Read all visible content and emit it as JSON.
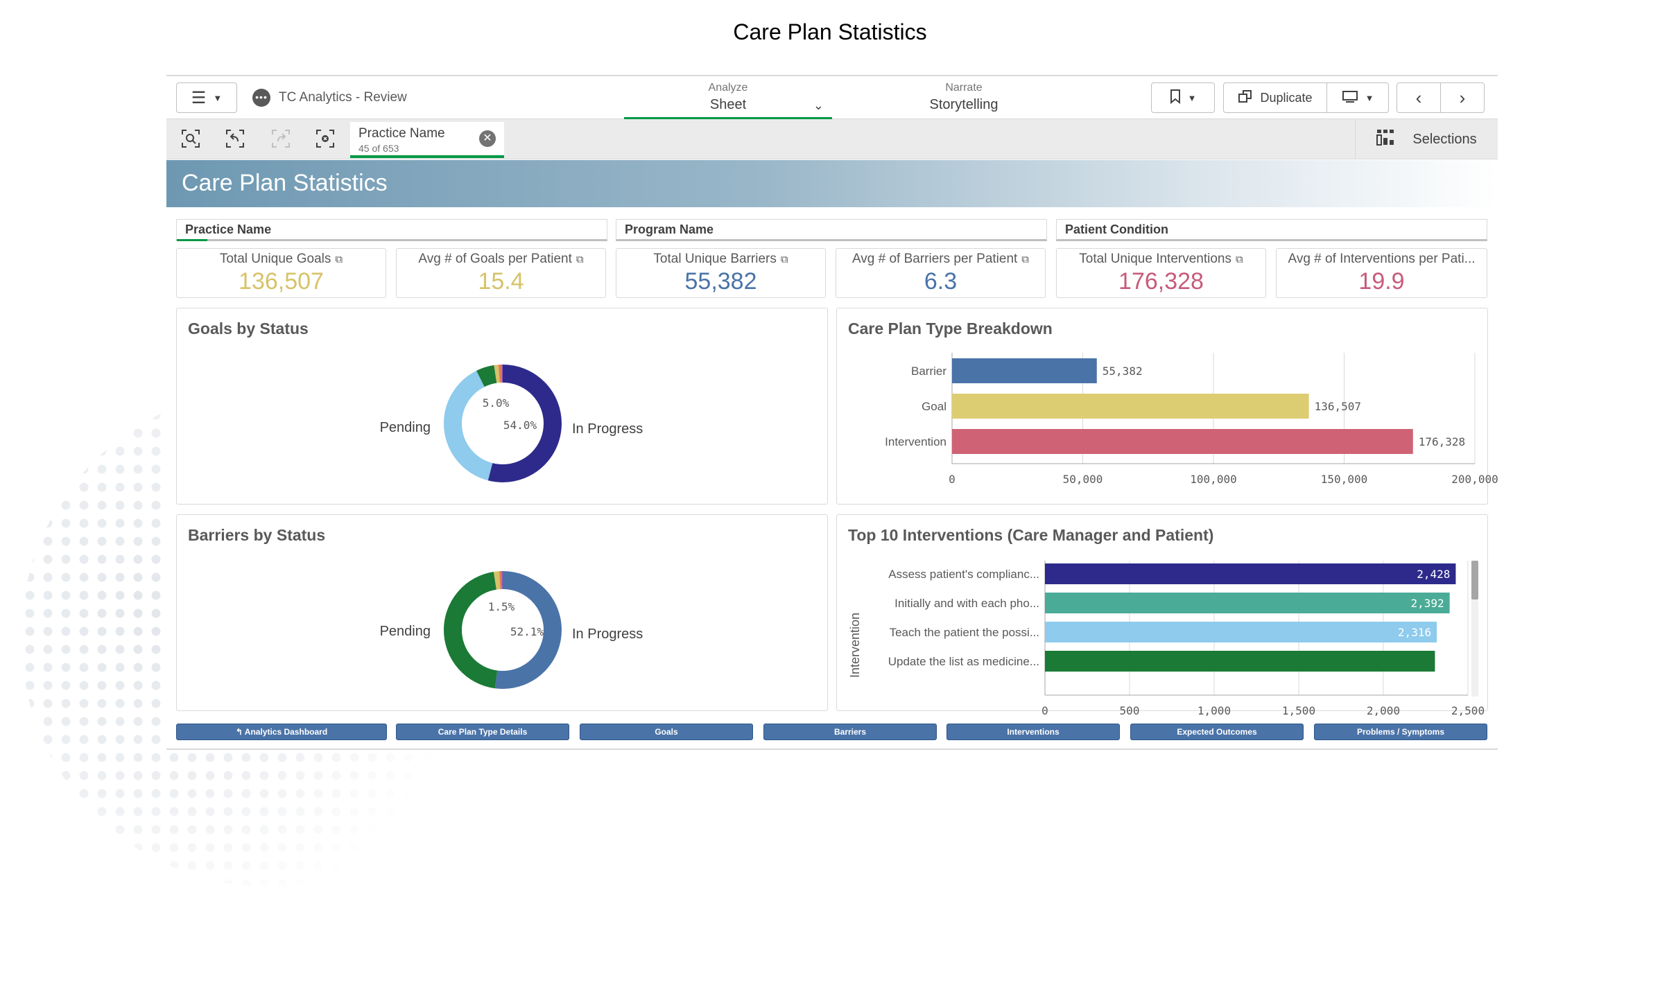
{
  "slide": {
    "title": "Care Plan Statistics"
  },
  "toolbar": {
    "app_name": "TC Analytics - Review",
    "modes": [
      {
        "small": "Analyze",
        "big": "Sheet"
      },
      {
        "small": "Narrate",
        "big": "Storytelling"
      }
    ],
    "duplicate_label": "Duplicate"
  },
  "selections": {
    "chip": {
      "name": "Practice Name",
      "count": "45 of 653"
    },
    "label": "Selections"
  },
  "sheet": {
    "title": "Care Plan Statistics"
  },
  "filters": [
    "Practice Name",
    "Program Name",
    "Patient Condition"
  ],
  "kpis": [
    {
      "label": "Total Unique Goals",
      "value": "136,507",
      "color": "#d6c368"
    },
    {
      "label": "Avg # of Goals per Patient",
      "value": "15.4",
      "color": "#d6c368"
    },
    {
      "label": "Total Unique Barriers",
      "value": "55,382",
      "color": "#4a73a8"
    },
    {
      "label": "Avg # of Barriers per Patient",
      "value": "6.3",
      "color": "#4a73a8"
    },
    {
      "label": "Total Unique Interventions",
      "value": "176,328",
      "color": "#c75b7a"
    },
    {
      "label": "Avg # of Interventions per Pati...",
      "value": "19.9",
      "color": "#c75b7a"
    }
  ],
  "panels": {
    "goals": "Goals by Status",
    "barriers": "Barriers by Status",
    "care_plan": "Care Plan Type Breakdown",
    "top10": "Top 10 Interventions (Care Manager and Patient)"
  },
  "chart_data": [
    {
      "type": "pie",
      "title": "Goals by Status",
      "slices": [
        {
          "name": "In Progress",
          "value": 54.0,
          "color": "#2d2a8c"
        },
        {
          "name": "Pending",
          "value": 38.6,
          "color": "#8ecbed"
        },
        {
          "name": "",
          "value": 5.0,
          "color": "#1a7a36"
        },
        {
          "name": "",
          "value": 1.2,
          "color": "#d6c368"
        },
        {
          "name": "",
          "value": 0.8,
          "color": "#e07a5f"
        },
        {
          "name": "",
          "value": 0.4,
          "color": "#9b59b6"
        }
      ],
      "labels_shown": [
        "5.0%",
        "54.0%"
      ]
    },
    {
      "type": "pie",
      "title": "Barriers by Status",
      "slices": [
        {
          "name": "In Progress",
          "value": 52.1,
          "color": "#4a73a8"
        },
        {
          "name": "Pending",
          "value": 45.4,
          "color": "#1a7a36"
        },
        {
          "name": "",
          "value": 1.5,
          "color": "#d6c368"
        },
        {
          "name": "",
          "value": 0.6,
          "color": "#e07a5f"
        },
        {
          "name": "",
          "value": 0.4,
          "color": "#9b59b6"
        }
      ],
      "labels_shown": [
        "1.5%",
        "52.1%"
      ]
    },
    {
      "type": "bar",
      "title": "Care Plan Type Breakdown",
      "orientation": "horizontal",
      "categories": [
        "Barrier",
        "Goal",
        "Intervention"
      ],
      "values": [
        55382,
        136507,
        176328
      ],
      "value_labels": [
        "55,382",
        "136,507",
        "176,328"
      ],
      "colors": [
        "#4a73a8",
        "#dccd73",
        "#cf6275"
      ],
      "xlim": [
        0,
        200000
      ],
      "ticks": [
        "0",
        "50,000",
        "100,000",
        "150,000",
        "200,000"
      ]
    },
    {
      "type": "bar",
      "title": "Top 10 Interventions (Care Manager and Patient)",
      "orientation": "horizontal",
      "ylabel": "Intervention",
      "categories": [
        "Assess patient's complianc...",
        "Initially and with each pho...",
        "Teach the patient the possi...",
        "Update the list as medicine..."
      ],
      "values": [
        2428,
        2392,
        2316,
        2305
      ],
      "value_labels": [
        "2,428",
        "2,392",
        "2,316",
        ""
      ],
      "colors": [
        "#2d2a8c",
        "#4aab97",
        "#8ecbed",
        "#1a7a36"
      ],
      "xlim": [
        0,
        2500
      ],
      "ticks": [
        "0",
        "500",
        "1,000",
        "1,500",
        "2,000",
        "2,500"
      ]
    }
  ],
  "footer_nav": [
    "Analytics Dashboard",
    "Care Plan Type Details",
    "Goals",
    "Barriers",
    "Interventions",
    "Expected Outcomes",
    "Problems / Symptoms"
  ]
}
